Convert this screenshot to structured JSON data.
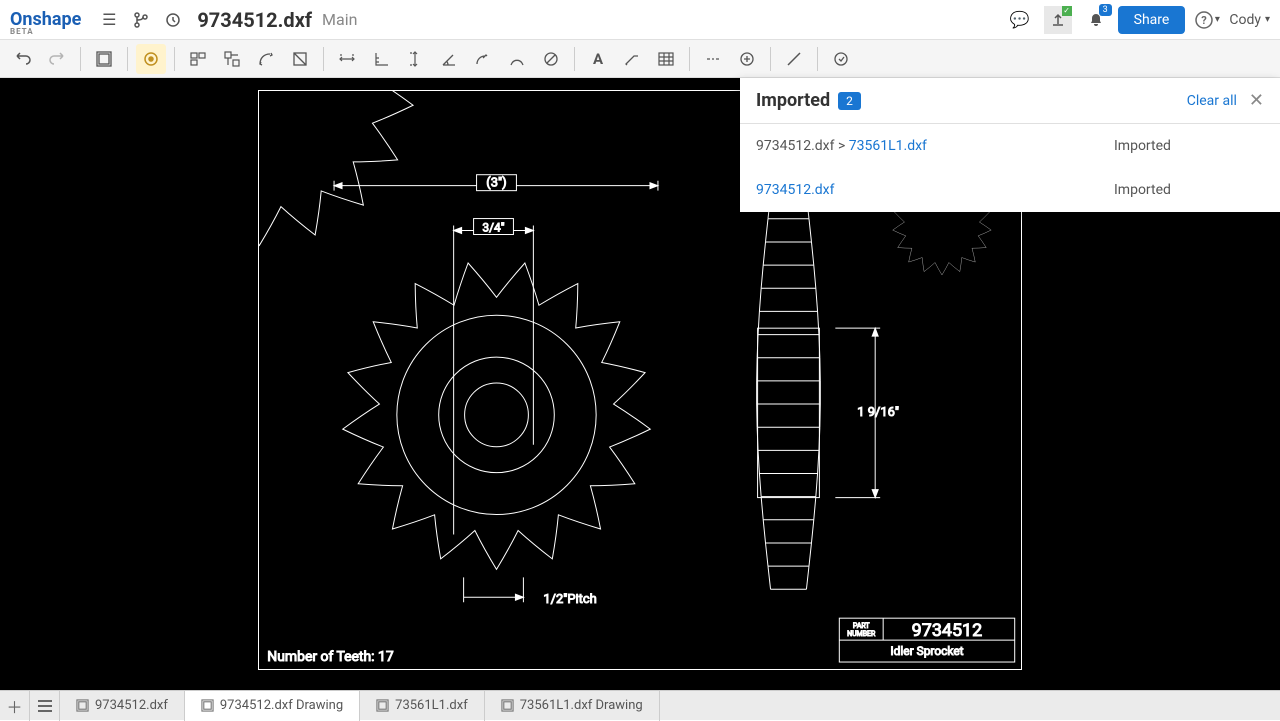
{
  "app": {
    "logo": "Onshape",
    "logo_sub": "BETA"
  },
  "document": {
    "title": "9734512.dxf",
    "branch": "Main"
  },
  "header": {
    "share": "Share",
    "user": "Cody",
    "notif_count": "3"
  },
  "panel": {
    "title": "Imported",
    "count": "2",
    "clear_all": "Clear all",
    "rows": [
      {
        "prefix": "9734512.dxf > ",
        "link": "73561L1.dxf",
        "status": "Imported"
      },
      {
        "prefix": "",
        "link": "9734512.dxf",
        "status": "Imported"
      }
    ]
  },
  "tabs": [
    {
      "label": "9734512.dxf",
      "active": false
    },
    {
      "label": "9734512.dxf Drawing",
      "active": true
    },
    {
      "label": "73561L1.dxf",
      "active": false
    },
    {
      "label": "73561L1.dxf Drawing",
      "active": false
    }
  ],
  "drawing": {
    "dims": {
      "top": "(3\")",
      "mid": "3/4\"",
      "right": "1 9/16\"",
      "pitch": "1/2\"Pitch"
    },
    "note": "Number of Teeth: 17",
    "titleblock": {
      "part_label": "PART\nNUMBER",
      "part_no": "9734512",
      "desc": "Idler Sprocket"
    },
    "colors": {
      "bg": "#000000",
      "stroke": "#ffffff"
    }
  }
}
